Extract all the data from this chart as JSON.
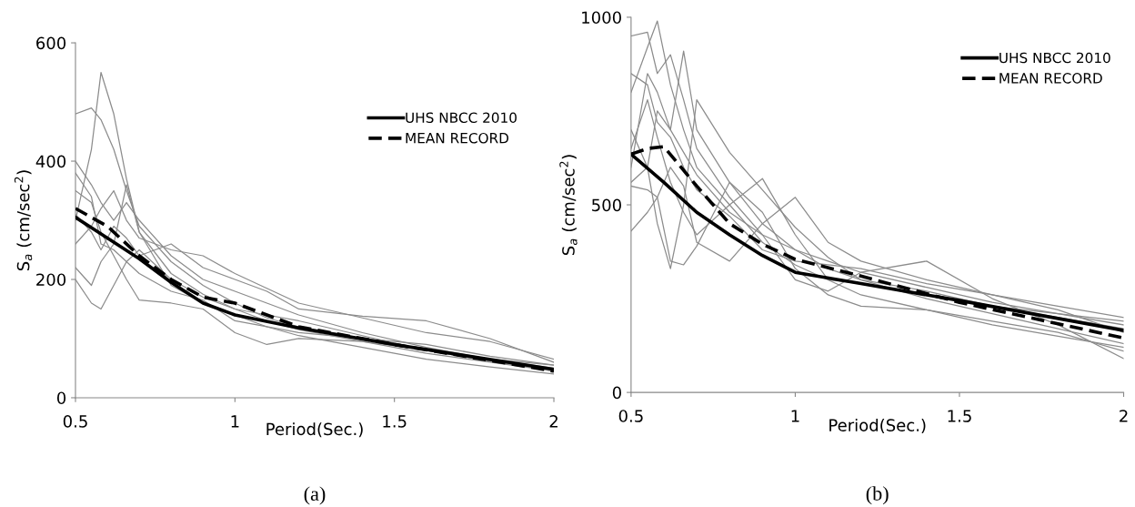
{
  "chart_data": [
    {
      "type": "line",
      "xlabel": "Period(Sec.)",
      "ylabel": "S$_{a}$ (cm/sec$^{2}$)",
      "xlim": [
        0.5,
        2
      ],
      "xticks": [
        0.5,
        1,
        1.5,
        2
      ],
      "ylim": [
        0,
        600
      ],
      "yticks": [
        0,
        200,
        400,
        600
      ],
      "grid": false,
      "legend": "top right",
      "annotations": [
        "(a)"
      ],
      "x": [
        0.5,
        0.55,
        0.58,
        0.62,
        0.66,
        0.7,
        0.8,
        0.9,
        1.0,
        1.1,
        1.2,
        1.4,
        1.6,
        1.8,
        2.0
      ],
      "series": [
        {
          "color": "#8c8c8c",
          "values": [
            300,
            420,
            550,
            480,
            370,
            280,
            210,
            175,
            150,
            130,
            115,
            95,
            75,
            60,
            45
          ]
        },
        {
          "color": "#8c8c8c",
          "values": [
            480,
            490,
            470,
            420,
            350,
            290,
            230,
            190,
            160,
            135,
            120,
            100,
            80,
            62,
            48
          ]
        },
        {
          "color": "#8c8c8c",
          "values": [
            400,
            360,
            330,
            300,
            330,
            300,
            240,
            200,
            180,
            160,
            140,
            110,
            85,
            65,
            50
          ]
        },
        {
          "color": "#8c8c8c",
          "values": [
            200,
            160,
            150,
            190,
            230,
            250,
            200,
            170,
            150,
            140,
            130,
            105,
            80,
            62,
            45
          ]
        },
        {
          "color": "#8c8c8c",
          "values": [
            220,
            190,
            230,
            260,
            360,
            280,
            190,
            160,
            140,
            120,
            105,
            85,
            65,
            52,
            40
          ]
        },
        {
          "color": "#8c8c8c",
          "values": [
            350,
            330,
            280,
            240,
            200,
            165,
            160,
            150,
            110,
            90,
            100,
            95,
            80,
            65,
            55
          ]
        },
        {
          "color": "#8c8c8c",
          "values": [
            260,
            290,
            320,
            350,
            300,
            270,
            250,
            240,
            210,
            185,
            160,
            135,
            110,
            95,
            65
          ]
        },
        {
          "color": "#8c8c8c",
          "values": [
            380,
            340,
            260,
            250,
            230,
            210,
            180,
            165,
            130,
            120,
            110,
            100,
            90,
            70,
            55
          ]
        },
        {
          "color": "#8c8c8c",
          "values": [
            310,
            280,
            250,
            290,
            270,
            240,
            260,
            220,
            200,
            180,
            150,
            138,
            130,
            100,
            60
          ]
        },
        {
          "name": "UHS NBCC 2010",
          "color": "#000000",
          "line_style": "solid",
          "x": [
            0.5,
            0.6,
            0.7,
            0.8,
            0.9,
            1.0,
            1.2,
            1.5,
            2.0
          ],
          "values": [
            305,
            270,
            235,
            195,
            160,
            140,
            118,
            90,
            48
          ]
        },
        {
          "name": "MEAN RECORD",
          "color": "#000000",
          "line_style": "dashed",
          "x": [
            0.5,
            0.6,
            0.7,
            0.8,
            0.9,
            1.0,
            1.1,
            1.2,
            1.5,
            2.0
          ],
          "values": [
            320,
            290,
            240,
            200,
            170,
            160,
            140,
            120,
            90,
            45
          ]
        }
      ]
    },
    {
      "type": "line",
      "xlabel": "Period(Sec.)",
      "ylabel": "S$_{a}$ (cm/sec$^{2}$)",
      "xlim": [
        0.5,
        2
      ],
      "xticks": [
        0.5,
        1,
        1.5,
        2
      ],
      "ylim": [
        0,
        1000
      ],
      "yticks": [
        0,
        500,
        1000
      ],
      "grid": false,
      "legend": "top right",
      "annotations": [
        "(b)"
      ],
      "x": [
        0.5,
        0.55,
        0.58,
        0.62,
        0.66,
        0.7,
        0.8,
        0.9,
        1.0,
        1.1,
        1.2,
        1.4,
        1.6,
        1.8,
        2.0
      ],
      "series": [
        {
          "color": "#8c8c8c",
          "values": [
            950,
            960,
            850,
            900,
            780,
            650,
            520,
            420,
            380,
            330,
            300,
            270,
            230,
            200,
            170
          ]
        },
        {
          "color": "#8c8c8c",
          "values": [
            800,
            920,
            990,
            820,
            700,
            600,
            500,
            400,
            340,
            300,
            290,
            260,
            230,
            210,
            180
          ]
        },
        {
          "color": "#8c8c8c",
          "values": [
            600,
            850,
            800,
            700,
            910,
            700,
            560,
            450,
            380,
            350,
            320,
            280,
            240,
            210,
            190
          ]
        },
        {
          "color": "#8c8c8c",
          "values": [
            430,
            480,
            520,
            600,
            550,
            400,
            350,
            450,
            520,
            400,
            350,
            300,
            260,
            220,
            160
          ]
        },
        {
          "color": "#8c8c8c",
          "values": [
            550,
            540,
            520,
            350,
            340,
            390,
            560,
            480,
            330,
            260,
            230,
            220,
            180,
            150,
            120
          ]
        },
        {
          "color": "#8c8c8c",
          "values": [
            700,
            600,
            450,
            330,
            500,
            780,
            640,
            540,
            440,
            360,
            300,
            250,
            210,
            170,
            130
          ]
        },
        {
          "color": "#8c8c8c",
          "values": [
            650,
            780,
            680,
            560,
            480,
            420,
            500,
            570,
            420,
            300,
            260,
            220,
            190,
            160,
            110
          ]
        },
        {
          "color": "#8c8c8c",
          "values": [
            560,
            600,
            750,
            700,
            640,
            580,
            480,
            420,
            300,
            270,
            320,
            350,
            250,
            180,
            90
          ]
        },
        {
          "color": "#8c8c8c",
          "values": [
            850,
            820,
            720,
            680,
            600,
            540,
            470,
            380,
            350,
            340,
            330,
            290,
            260,
            230,
            200
          ]
        },
        {
          "name": "UHS NBCC 2010",
          "color": "#000000",
          "line_style": "solid",
          "x": [
            0.5,
            0.6,
            0.7,
            0.8,
            0.9,
            1.0,
            1.2,
            1.5,
            2.0
          ],
          "values": [
            635,
            560,
            480,
            420,
            365,
            320,
            290,
            245,
            165
          ]
        },
        {
          "name": "MEAN RECORD",
          "color": "#000000",
          "line_style": "dashed",
          "x": [
            0.5,
            0.55,
            0.6,
            0.7,
            0.8,
            0.9,
            1.0,
            1.2,
            1.5,
            2.0
          ],
          "values": [
            635,
            650,
            655,
            550,
            450,
            395,
            355,
            310,
            240,
            145
          ]
        }
      ]
    }
  ]
}
